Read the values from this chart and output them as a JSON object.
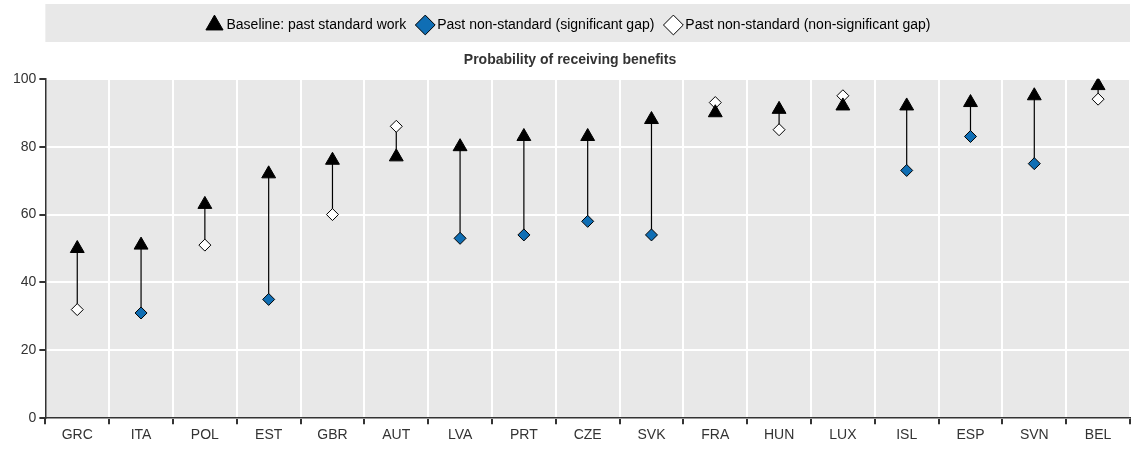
{
  "chart_data": {
    "type": "scatter",
    "title": "Probability of receiving benefits",
    "categories": [
      "GRC",
      "ITA",
      "POL",
      "EST",
      "GBR",
      "AUT",
      "LVA",
      "PRT",
      "CZE",
      "SVK",
      "FRA",
      "HUN",
      "LUX",
      "ISL",
      "ESP",
      "SVN",
      "BEL"
    ],
    "series": [
      {
        "name": "Baseline: past standard work",
        "color": "#000000",
        "marker": "triangle",
        "values": [
          50,
          51,
          63,
          72,
          76,
          77,
          80,
          83,
          83,
          88,
          90,
          91,
          92,
          92,
          93,
          95,
          98
        ]
      },
      {
        "name": "Past non-standard (significant gap)",
        "color": "#0f6eb4",
        "marker": "diamond",
        "values": [
          null,
          31,
          null,
          35,
          null,
          null,
          53,
          54,
          58,
          54,
          null,
          null,
          null,
          73,
          83,
          75,
          null
        ]
      },
      {
        "name": "Past non-standard (non-significant gap)",
        "color": "#ffffff",
        "marker": "diamond",
        "values": [
          32,
          null,
          51,
          null,
          60,
          86,
          null,
          null,
          null,
          null,
          93,
          85,
          95,
          null,
          null,
          null,
          94
        ]
      }
    ],
    "ylim": [
      0,
      100
    ],
    "yticks": [
      0,
      20,
      40,
      60,
      80,
      100
    ],
    "grid": true,
    "legend": "top"
  }
}
